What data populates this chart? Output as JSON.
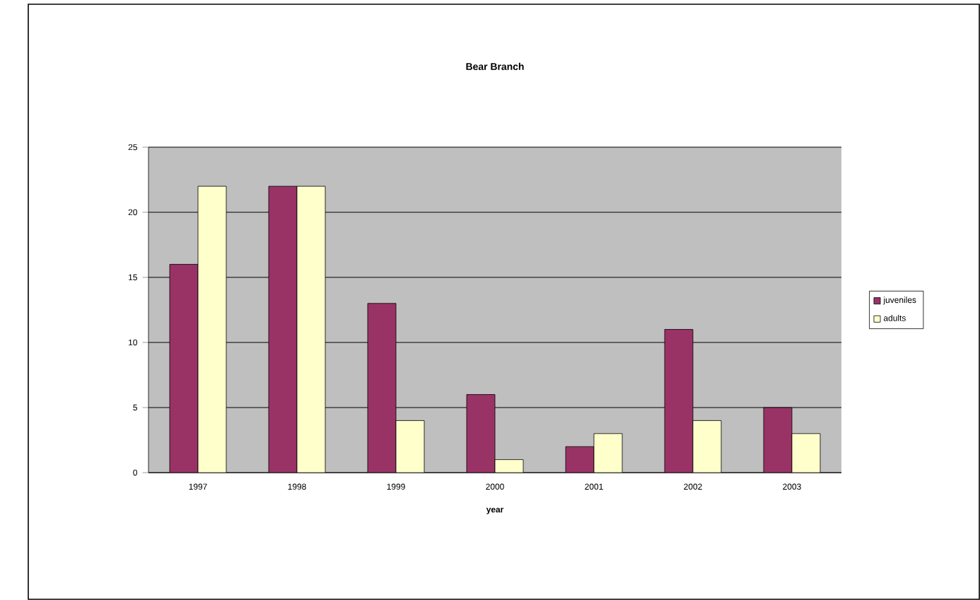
{
  "chart_data": {
    "type": "bar",
    "title": "Bear Branch",
    "xlabel": "year",
    "categories": [
      "1997",
      "1998",
      "1999",
      "2000",
      "2001",
      "2002",
      "2003"
    ],
    "series": [
      {
        "name": "juveniles",
        "color": "#993366",
        "values": [
          16,
          22,
          13,
          6,
          2,
          11,
          5
        ]
      },
      {
        "name": "adults",
        "color": "#ffffcc",
        "values": [
          22,
          22,
          4,
          1,
          3,
          4,
          3
        ]
      }
    ],
    "ylim": [
      0,
      25
    ],
    "yticks": [
      0,
      5,
      10,
      15,
      20,
      25
    ],
    "grid": "y",
    "legend": "right"
  }
}
